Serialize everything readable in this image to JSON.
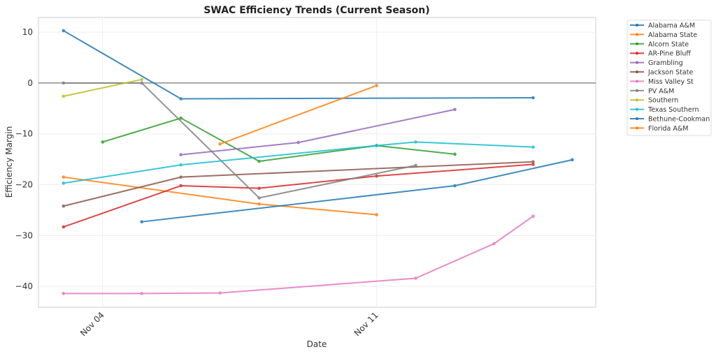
{
  "chart_data": {
    "type": "line",
    "title": "SWAC Efficiency Trends (Current Season)",
    "xlabel": "Date",
    "ylabel": "Efficiency Margin",
    "x_unit": "day of November",
    "xlim": [
      2.36,
      16.6
    ],
    "ylim": [
      -44.1,
      12.9
    ],
    "x_ticks": [
      {
        "value": 4,
        "label": "Nov 04"
      },
      {
        "value": 11,
        "label": "Nov 11"
      }
    ],
    "y_ticks": [
      {
        "value": 10,
        "label": "10"
      },
      {
        "value": 0,
        "label": "0"
      },
      {
        "value": -10,
        "label": "−10"
      },
      {
        "value": -20,
        "label": "−20"
      },
      {
        "value": -30,
        "label": "−30"
      },
      {
        "value": -40,
        "label": "−40"
      }
    ],
    "grid": true,
    "reference_line": 0,
    "legend_placement": "outside-top-right",
    "series": [
      {
        "name": "Alabama A&M",
        "color": "#1f77b4",
        "x": [
          3,
          6,
          15
        ],
        "y": [
          10.3,
          -3.1,
          -2.9
        ]
      },
      {
        "name": "Alabama State",
        "color": "#ff7f0e",
        "x": [
          3,
          8,
          11
        ],
        "y": [
          -18.5,
          -23.8,
          -25.9
        ]
      },
      {
        "name": "Alcorn State",
        "color": "#2ca02c",
        "x": [
          4,
          6,
          8,
          11,
          13
        ],
        "y": [
          -11.6,
          -6.9,
          -15.4,
          -12.3,
          -14.0
        ]
      },
      {
        "name": "AR-Pine Bluff",
        "color": "#d62728",
        "x": [
          3,
          6,
          8,
          11,
          15
        ],
        "y": [
          -28.3,
          -20.2,
          -20.7,
          -18.3,
          -16.0
        ]
      },
      {
        "name": "Grambling",
        "color": "#9467bd",
        "x": [
          6,
          9,
          13
        ],
        "y": [
          -14.1,
          -11.7,
          -5.2
        ]
      },
      {
        "name": "Jackson State",
        "color": "#8c564b",
        "x": [
          3,
          6,
          15
        ],
        "y": [
          -24.2,
          -18.5,
          -15.5
        ]
      },
      {
        "name": "Miss Valley St",
        "color": "#e377c2",
        "x": [
          3,
          5,
          7,
          12,
          14,
          15
        ],
        "y": [
          -41.4,
          -41.4,
          -41.3,
          -38.4,
          -31.6,
          -26.2
        ]
      },
      {
        "name": "PV A&M",
        "color": "#7f7f7f",
        "x": [
          3,
          5,
          8,
          12
        ],
        "y": [
          0.0,
          0.0,
          -22.6,
          -16.2
        ]
      },
      {
        "name": "Southern",
        "color": "#bcbd22",
        "x": [
          3,
          5
        ],
        "y": [
          -2.6,
          0.7
        ]
      },
      {
        "name": "Texas Southern",
        "color": "#17becf",
        "x": [
          3,
          6,
          11,
          12,
          15
        ],
        "y": [
          -19.7,
          -16.1,
          -12.3,
          -11.6,
          -12.6
        ]
      },
      {
        "name": "Bethune-Cookman",
        "color": "#1f77b4",
        "x": [
          5,
          13,
          16
        ],
        "y": [
          -27.3,
          -20.2,
          -15.1
        ]
      },
      {
        "name": "Florida A&M",
        "color": "#ff7f0e",
        "x": [
          7,
          11
        ],
        "y": [
          -12.0,
          -0.5
        ]
      }
    ]
  }
}
